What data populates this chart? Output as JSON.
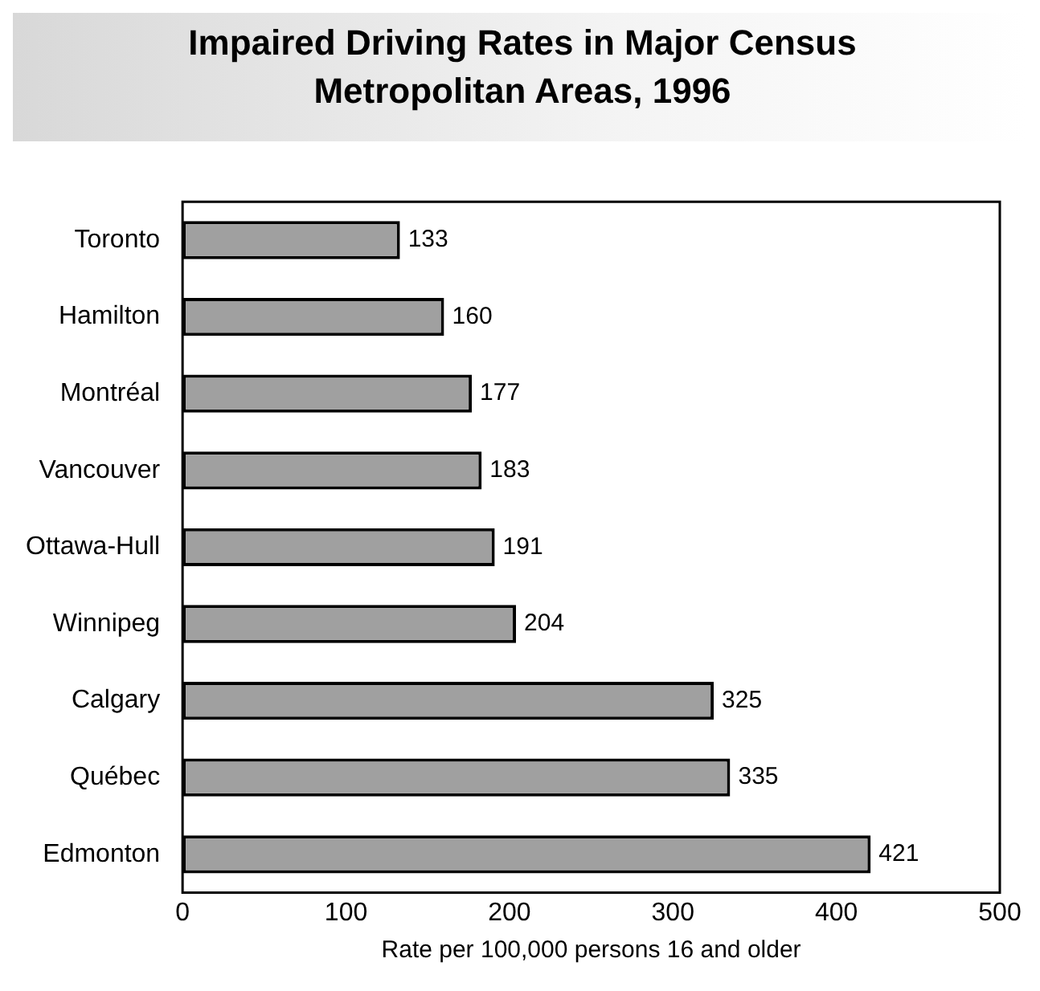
{
  "chart_data": {
    "type": "bar",
    "orientation": "horizontal",
    "title": "Impaired Driving Rates in Major Census Metropolitan Areas, 1996",
    "xlabel": "Rate per 100,000 persons 16 and older",
    "categories": [
      "Toronto",
      "Hamilton",
      "Montréal",
      "Vancouver",
      "Ottawa-Hull",
      "Winnipeg",
      "Calgary",
      "Québec",
      "Edmonton"
    ],
    "values": [
      133,
      160,
      177,
      183,
      191,
      204,
      325,
      335,
      421
    ],
    "color": "#a0a0a0",
    "xlim": [
      0,
      500
    ],
    "xticks": [
      0,
      100,
      200,
      300,
      400,
      500
    ],
    "data_labels": true,
    "grid": false,
    "legend": false
  }
}
